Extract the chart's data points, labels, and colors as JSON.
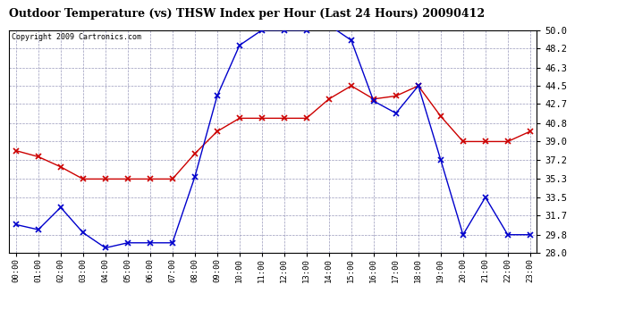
{
  "title": "Outdoor Temperature (vs) THSW Index per Hour (Last 24 Hours) 20090412",
  "copyright": "Copyright 2009 Cartronics.com",
  "hours": [
    0,
    1,
    2,
    3,
    4,
    5,
    6,
    7,
    8,
    9,
    10,
    11,
    12,
    13,
    14,
    15,
    16,
    17,
    18,
    19,
    20,
    21,
    22,
    23
  ],
  "hour_labels": [
    "00:00",
    "01:00",
    "02:00",
    "03:00",
    "04:00",
    "05:00",
    "06:00",
    "07:00",
    "08:00",
    "09:00",
    "10:00",
    "11:00",
    "12:00",
    "13:00",
    "14:00",
    "15:00",
    "16:00",
    "17:00",
    "18:00",
    "19:00",
    "20:00",
    "21:00",
    "22:00",
    "23:00"
  ],
  "red_data": [
    38.1,
    37.5,
    36.5,
    35.3,
    35.3,
    35.3,
    35.3,
    35.3,
    37.8,
    40.0,
    41.3,
    41.3,
    41.3,
    41.3,
    43.2,
    44.5,
    43.2,
    43.5,
    44.5,
    41.5,
    39.0,
    39.0,
    39.0,
    40.0
  ],
  "blue_data": [
    30.8,
    30.3,
    32.5,
    30.0,
    28.5,
    29.0,
    29.0,
    29.0,
    35.5,
    43.5,
    48.5,
    50.0,
    50.0,
    50.0,
    50.5,
    49.0,
    43.0,
    41.8,
    44.5,
    37.2,
    29.8,
    33.5,
    29.8,
    29.8
  ],
  "red_color": "#cc0000",
  "blue_color": "#0000cc",
  "bg_color": "#ffffff",
  "plot_bg": "#ffffff",
  "grid_color": "#9999bb",
  "ylim_min": 28.0,
  "ylim_max": 50.0,
  "yticks": [
    28.0,
    29.8,
    31.7,
    33.5,
    35.3,
    37.2,
    39.0,
    40.8,
    42.7,
    44.5,
    46.3,
    48.2,
    50.0
  ]
}
